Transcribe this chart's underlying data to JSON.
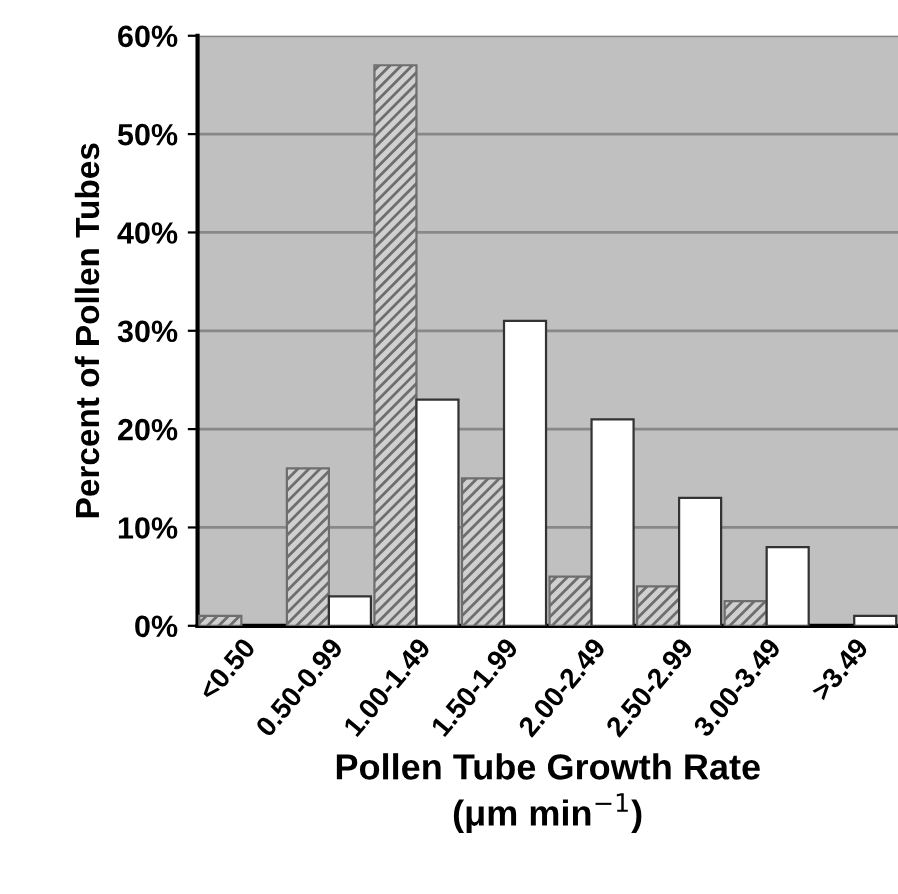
{
  "chart_data": {
    "type": "bar",
    "xlabel": "Pollen Tube Growth Rate\n(μm min$^{−1}$)",
    "ylabel": "Percent of Pollen Tubes",
    "categories": [
      "<0.50",
      "0.50-0.99",
      "1.00-1.49",
      "1.50-1.99",
      "2.00-2.49",
      "2.50-2.99",
      "3.00-3.49",
      ">3.49"
    ],
    "series": [
      {
        "color": "#6e6e6e",
        "values": [
          1,
          16,
          57,
          15,
          5,
          4,
          2.5,
          null
        ]
      },
      {
        "color": "#ffffff",
        "values": [
          null,
          3,
          23,
          31,
          21,
          13,
          8,
          1
        ]
      }
    ],
    "ylim": [
      0,
      60
    ],
    "yticks": [
      {
        "value": 0,
        "label": "0%"
      },
      {
        "value": 10,
        "label": "10%"
      },
      {
        "value": 20,
        "label": "20%"
      },
      {
        "value": 30,
        "label": "30%"
      },
      {
        "value": 40,
        "label": "40%"
      },
      {
        "value": 50,
        "label": "50%"
      },
      {
        "value": 60,
        "label": "60%"
      }
    ],
    "grid": "y",
    "legend": false
  }
}
